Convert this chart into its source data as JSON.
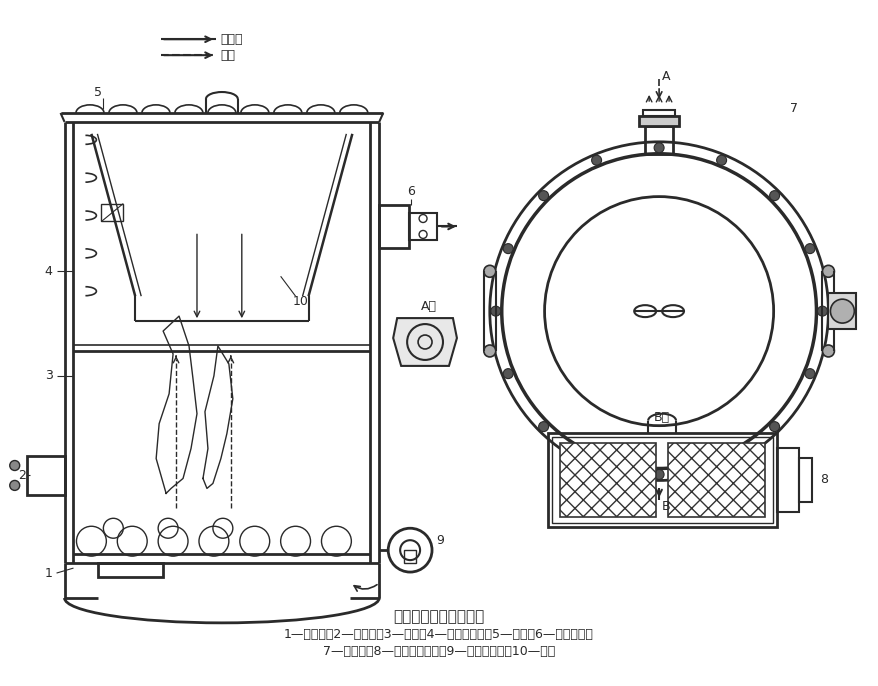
{
  "title": "立式无管式热风炉结构",
  "caption_line1": "1—出灰口；2—加煤口；3—炉体；4—螺旋导风板；5—炉盖；6—热风出口；",
  "caption_line2": "7—排烟口；8—外界空气进口；9—助燃小风机；10—助片",
  "legend_solid": "热空气",
  "legend_dashed": "烟气",
  "bg_color": "#ffffff",
  "line_color": "#2a2a2a",
  "label_fontsize": 9,
  "caption_fontsize": 9,
  "title_fontsize": 11
}
